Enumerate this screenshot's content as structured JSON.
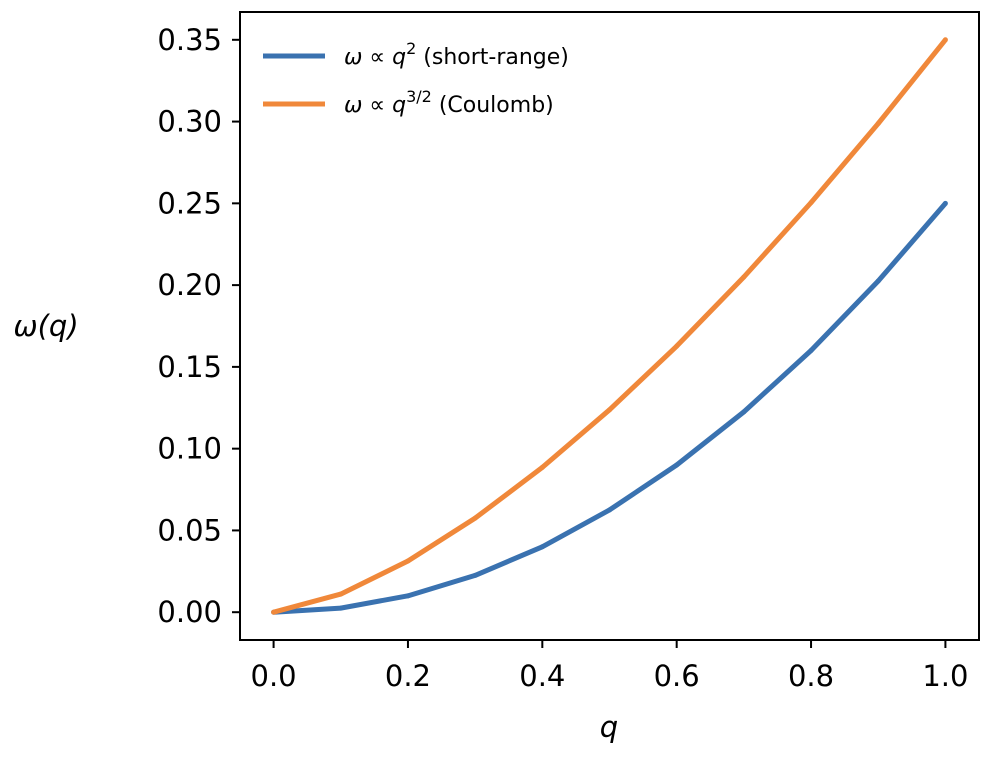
{
  "chart_data": {
    "type": "line",
    "title": "",
    "xlabel": "q",
    "ylabel": "ω(q)",
    "xlim": [
      -0.05,
      1.05
    ],
    "ylim": [
      -0.017,
      0.367
    ],
    "x_ticks": [
      0.0,
      0.2,
      0.4,
      0.6,
      0.8,
      1.0
    ],
    "x_tick_labels": [
      "0.0",
      "0.2",
      "0.4",
      "0.6",
      "0.8",
      "1.0"
    ],
    "y_ticks": [
      0.0,
      0.05,
      0.1,
      0.15,
      0.2,
      0.25,
      0.3,
      0.35
    ],
    "y_tick_labels": [
      "0.00",
      "0.05",
      "0.10",
      "0.15",
      "0.20",
      "0.25",
      "0.30",
      "0.35"
    ],
    "legend_position": "top-left",
    "grid": false,
    "x": [
      0.0,
      0.1,
      0.2,
      0.3,
      0.4,
      0.5,
      0.6,
      0.7,
      0.8,
      0.9,
      1.0
    ],
    "series": [
      {
        "name": "ω ∝ q² (short-range)",
        "legend_prefix": "ω ∝ q",
        "legend_sup": "2",
        "legend_suffix": " (short-range)",
        "color": "#3a72b0",
        "values": [
          0.0,
          0.0025,
          0.01,
          0.0225,
          0.04,
          0.0625,
          0.09,
          0.1225,
          0.16,
          0.2025,
          0.25
        ]
      },
      {
        "name": "ω ∝ q^{3/2} (Coulomb)",
        "legend_prefix": "ω ∝ q",
        "legend_sup": "3/2",
        "legend_suffix": " (Coulomb)",
        "color": "#f0883a",
        "values": [
          0.0,
          0.01107,
          0.0313,
          0.0575,
          0.08854,
          0.12374,
          0.16267,
          0.20497,
          0.25044,
          0.29882,
          0.35
        ]
      }
    ]
  }
}
